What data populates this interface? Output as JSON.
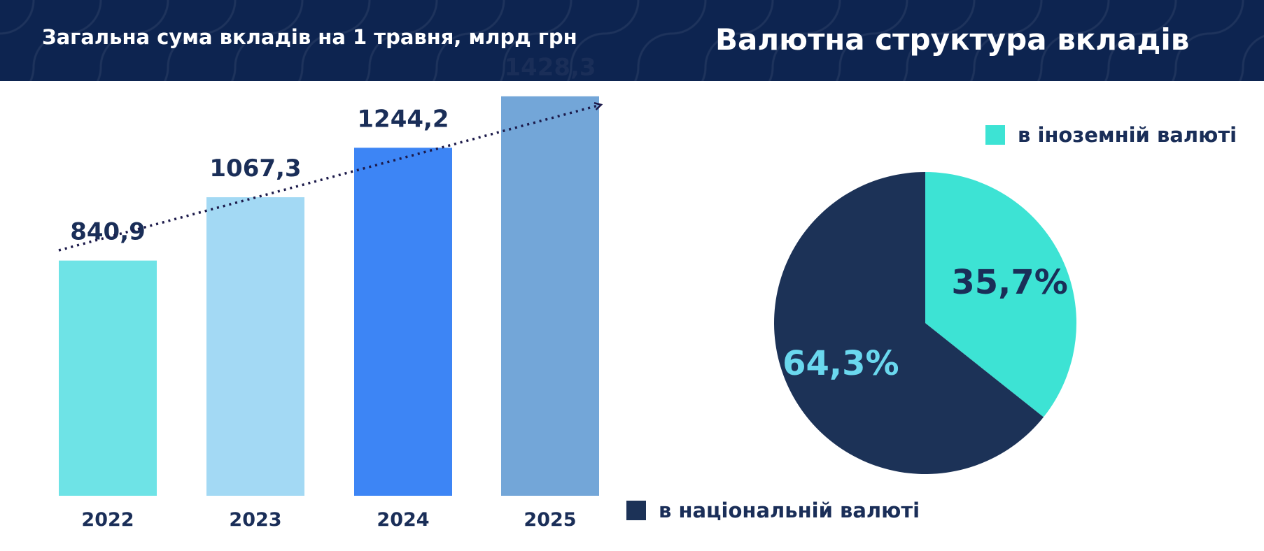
{
  "header": {
    "left_title": "Загальна сума вкладів на 1 травня, млрд грн",
    "right_title": "Валютна структура вкладів"
  },
  "colors": {
    "header_bg": "#0d2450",
    "text_dark": "#1a2e58",
    "bar_2022": "#6ee3e6",
    "bar_2023": "#a3d9f4",
    "bar_2024": "#3d85f5",
    "bar_2025": "#73a6d8",
    "pie_foreign": "#3de3d4",
    "pie_national": "#1c3257",
    "pie_label_national": "#6ad8ee"
  },
  "chart_data": [
    {
      "type": "bar",
      "title": "Загальна сума вкладів на 1 травня, млрд грн",
      "categories": [
        "2022",
        "2023",
        "2024",
        "2025"
      ],
      "values": [
        840.9,
        1067.3,
        1244.2,
        1428.3
      ],
      "value_labels": [
        "840,9",
        "1067,3",
        "1244,2",
        "1428,3"
      ],
      "ylim": [
        0,
        1450
      ],
      "grid": false,
      "trend_arrow": true
    },
    {
      "type": "pie",
      "title": "Валютна структура вкладів",
      "labels": [
        "в іноземній валюті",
        "в національній валюті"
      ],
      "values": [
        35.7,
        64.3
      ],
      "value_labels": [
        "35,7%",
        "64,3%"
      ],
      "start": "12 o'clock, clockwise"
    }
  ],
  "legend": {
    "foreign": "в іноземній валюті",
    "national": "в національній валюті"
  }
}
